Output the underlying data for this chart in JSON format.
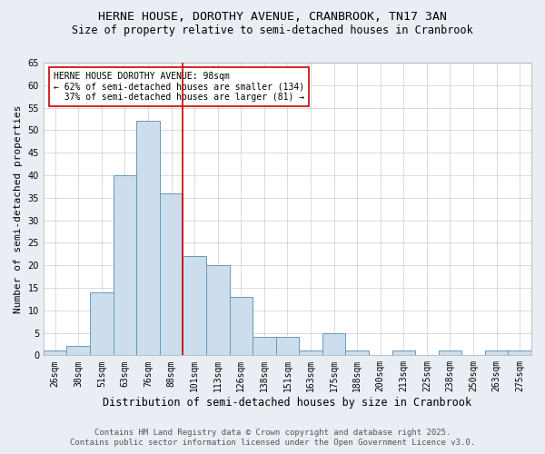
{
  "title": "HERNE HOUSE, DOROTHY AVENUE, CRANBROOK, TN17 3AN",
  "subtitle": "Size of property relative to semi-detached houses in Cranbrook",
  "xlabel": "Distribution of semi-detached houses by size in Cranbrook",
  "ylabel": "Number of semi-detached properties",
  "categories": [
    "26sqm",
    "38sqm",
    "51sqm",
    "63sqm",
    "76sqm",
    "88sqm",
    "101sqm",
    "113sqm",
    "126sqm",
    "138sqm",
    "151sqm",
    "163sqm",
    "175sqm",
    "188sqm",
    "200sqm",
    "213sqm",
    "225sqm",
    "238sqm",
    "250sqm",
    "263sqm",
    "275sqm"
  ],
  "values": [
    1,
    2,
    14,
    40,
    52,
    36,
    22,
    20,
    13,
    4,
    4,
    1,
    5,
    1,
    0,
    1,
    0,
    1,
    0,
    1,
    1
  ],
  "bar_color": "#ccdded",
  "bar_edge_color": "#6699bb",
  "ylim": [
    0,
    65
  ],
  "yticks": [
    0,
    5,
    10,
    15,
    20,
    25,
    30,
    35,
    40,
    45,
    50,
    55,
    60,
    65
  ],
  "property_bin_index": 6,
  "red_line_color": "#cc0000",
  "annotation_text": "HERNE HOUSE DOROTHY AVENUE: 98sqm\n← 62% of semi-detached houses are smaller (134)\n  37% of semi-detached houses are larger (81) →",
  "annotation_box_color": "#ffffff",
  "annotation_box_edge": "#cc0000",
  "footnote1": "Contains HM Land Registry data © Crown copyright and database right 2025.",
  "footnote2": "Contains public sector information licensed under the Open Government Licence v3.0.",
  "background_color": "#e8eef4",
  "plot_bg_color": "#ffffff",
  "title_fontsize": 9.5,
  "subtitle_fontsize": 8.5,
  "ylabel_fontsize": 8,
  "xlabel_fontsize": 8.5,
  "tick_fontsize": 7,
  "annotation_fontsize": 7,
  "footnote_fontsize": 6.5
}
